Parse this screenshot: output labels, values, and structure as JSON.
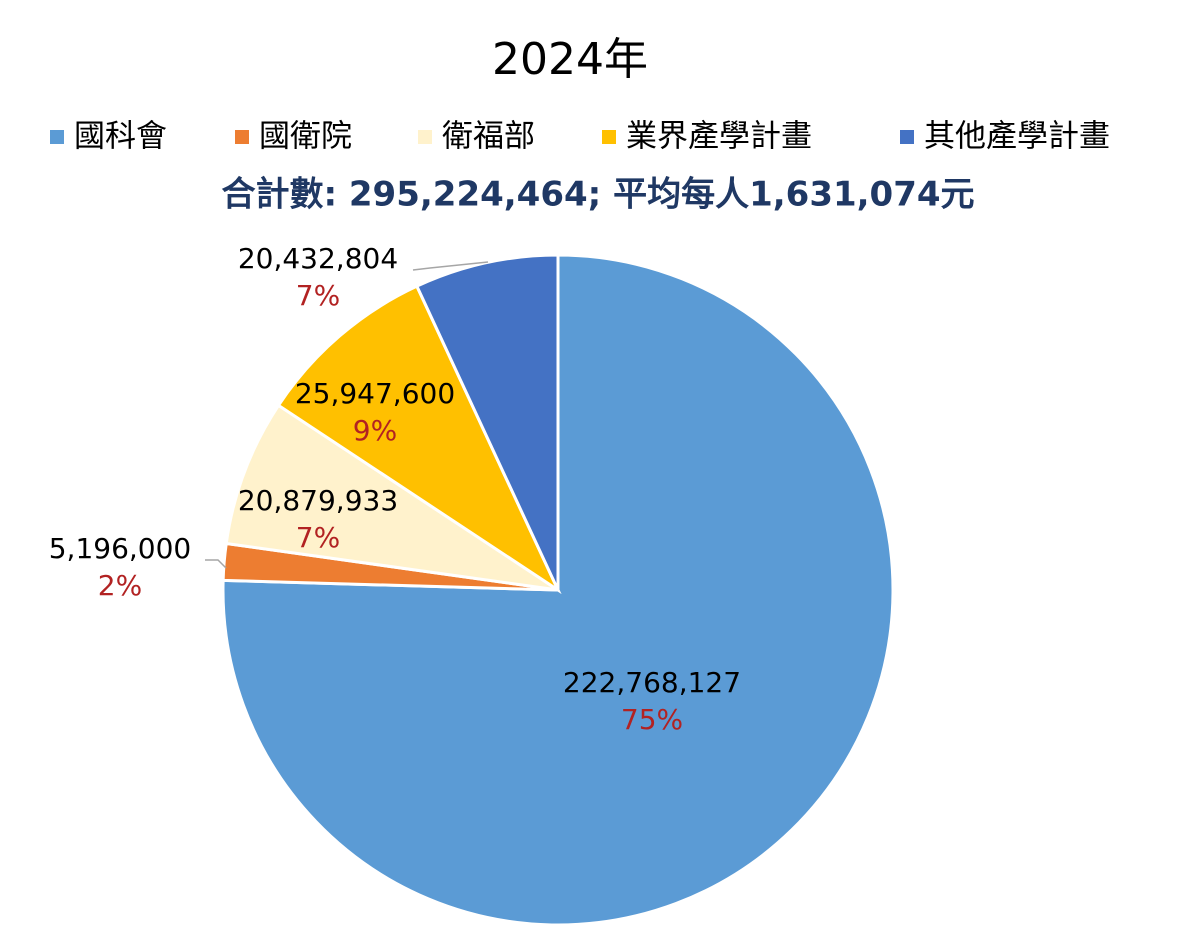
{
  "chart_data": {
    "type": "pie",
    "title": "2024年",
    "subtitle": "合計數: 295,224,464; 平均每人1,631,074元",
    "categories": [
      "國科會",
      "國衛院",
      "衛福部",
      "業界產學計畫",
      "其他產學計畫"
    ],
    "values": [
      222768127,
      5196000,
      20879933,
      25947600,
      20432804
    ],
    "value_labels": [
      "222,768,127",
      "5,196,000",
      "20,879,933",
      "25,947,600",
      "20,432,804"
    ],
    "percent_labels": [
      "75%",
      "2%",
      "7%",
      "9%",
      "7%"
    ],
    "colors": [
      "#5b9bd5",
      "#ed7d31",
      "#fff2cc",
      "#ffc000",
      "#4472c4"
    ]
  }
}
